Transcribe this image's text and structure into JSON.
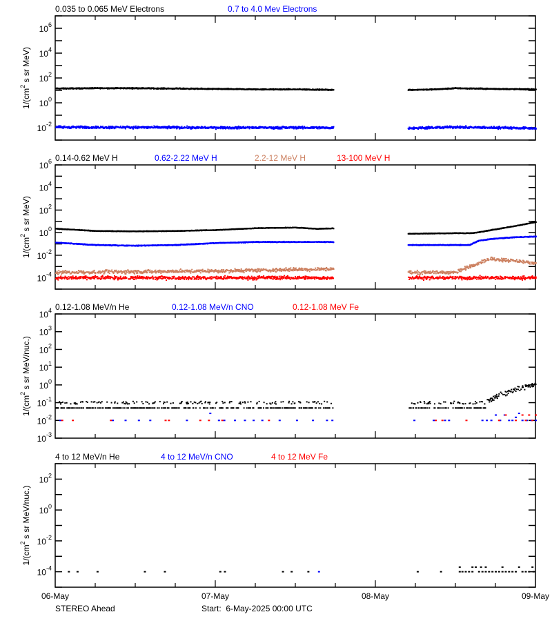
{
  "chart_data": [
    {
      "type": "scatter",
      "title_legend": [
        {
          "text": "0.035 to 0.065 MeV Electrons",
          "color": "#000000"
        },
        {
          "text": "0.7 to 4.0 Mev Electrons",
          "color": "#0000ff"
        }
      ],
      "ylabel_parts": [
        "1/(cm",
        "2",
        " s sr MeV)"
      ],
      "yscale": "log",
      "ylim": [
        0.001,
        10000000
      ],
      "ytick_labels": [
        "10^6",
        "10^4",
        "10^2",
        "10^0",
        "10^-2"
      ],
      "series": [
        {
          "color": "#000000",
          "segments": [
            [
              [
                "6 00:00",
                14
              ],
              [
                "6 06:00",
                15
              ],
              [
                "6 12:00",
                15
              ],
              [
                "6 18:00",
                14
              ],
              [
                "7 00:00",
                13
              ],
              [
                "7 06:00",
                12
              ],
              [
                "7 12:00",
                12
              ],
              [
                "7 17:40",
                11
              ]
            ],
            [
              [
                "8 04:50",
                11
              ],
              [
                "8 09:00",
                12
              ],
              [
                "8 12:00",
                15
              ],
              [
                "8 18:00",
                13
              ],
              [
                "9 00:00",
                12
              ]
            ]
          ]
        },
        {
          "color": "#0000ff",
          "segments": [
            [
              [
                "6 00:00",
                0.011
              ],
              [
                "7 00:00",
                0.01
              ],
              [
                "7 17:40",
                0.01
              ]
            ],
            [
              [
                "8 04:50",
                0.009
              ],
              [
                "8 12:00",
                0.011
              ],
              [
                "9 00:00",
                0.009
              ]
            ]
          ]
        }
      ]
    },
    {
      "type": "scatter",
      "title_legend": [
        {
          "text": "0.14-0.62 MeV H",
          "color": "#000000"
        },
        {
          "text": "0.62-2.22 MeV H",
          "color": "#0000ff"
        },
        {
          "text": "2.2-12 MeV H",
          "color": "#cc8060"
        },
        {
          "text": "13-100 MeV H",
          "color": "#ff0000"
        }
      ],
      "ylabel_parts": [
        "1/(cm",
        "2",
        " s sr MeV)"
      ],
      "yscale": "log",
      "ylim": [
        1e-05,
        1000000
      ],
      "ytick_labels": [
        "10^6",
        "10^4",
        "10^2",
        "10^0",
        "10^-2",
        "10^-4"
      ],
      "series": [
        {
          "color": "#000000",
          "segments": [
            [
              [
                "6 00:00",
                2.2
              ],
              [
                "6 03:00",
                1.8
              ],
              [
                "6 06:00",
                1.4
              ],
              [
                "6 12:00",
                1.3
              ],
              [
                "6 18:00",
                1.4
              ],
              [
                "7 00:00",
                1.7
              ],
              [
                "7 06:00",
                2.5
              ],
              [
                "7 12:00",
                2.8
              ],
              [
                "7 15:00",
                2.2
              ],
              [
                "7 17:40",
                2.4
              ]
            ],
            [
              [
                "8 04:50",
                0.8
              ],
              [
                "8 12:00",
                0.9
              ],
              [
                "8 14:30",
                0.9
              ],
              [
                "8 18:00",
                2
              ],
              [
                "8 21:00",
                4
              ],
              [
                "9 00:00",
                8.7
              ]
            ]
          ]
        },
        {
          "color": "#0000ff",
          "segments": [
            [
              [
                "6 00:00",
                0.13
              ],
              [
                "6 06:00",
                0.08
              ],
              [
                "6 12:00",
                0.07
              ],
              [
                "6 18:00",
                0.08
              ],
              [
                "7 00:00",
                0.12
              ],
              [
                "7 06:00",
                0.15
              ],
              [
                "7 12:00",
                0.15
              ],
              [
                "7 17:40",
                0.15
              ]
            ],
            [
              [
                "8 04:50",
                0.08
              ],
              [
                "8 14:00",
                0.08
              ],
              [
                "8 15:30",
                0.2
              ],
              [
                "8 18:00",
                0.3
              ],
              [
                "8 21:00",
                0.4
              ],
              [
                "9 00:00",
                0.45
              ]
            ]
          ]
        },
        {
          "color": "#cc8060",
          "segments": [
            [
              [
                "6 00:00",
                0.0003
              ],
              [
                "7 00:00",
                0.0004
              ],
              [
                "7 17:40",
                0.0006
              ]
            ],
            [
              [
                "8 04:50",
                0.0003
              ],
              [
                "8 12:00",
                0.0003
              ],
              [
                "8 14:00",
                0.001
              ],
              [
                "8 17:00",
                0.005
              ],
              [
                "8 20:00",
                0.0035
              ],
              [
                "9 00:00",
                0.002
              ]
            ]
          ]
        },
        {
          "color": "#ff0000",
          "segments": [
            [
              [
                "6 00:00",
                0.0001
              ],
              [
                "7 17:40",
                0.0001
              ]
            ],
            [
              [
                "8 04:50",
                0.0001
              ],
              [
                "9 00:00",
                0.0001
              ]
            ]
          ]
        }
      ]
    },
    {
      "type": "scatter",
      "title_legend": [
        {
          "text": "0.12-1.08 MeV/n He",
          "color": "#000000"
        },
        {
          "text": "0.12-1.08 MeV/n CNO",
          "color": "#0000ff"
        },
        {
          "text": "0.12-1.08 MeV Fe",
          "color": "#ff0000"
        }
      ],
      "ylabel_parts": [
        "1/(cm",
        "2",
        " s sr MeV/nuc.)"
      ],
      "yscale": "log",
      "ylim": [
        0.001,
        10000
      ],
      "ytick_labels": [
        "10^4",
        "10^3",
        "10^2",
        "10^1",
        "10^0",
        "10^-1",
        "10^-2",
        "10^-3"
      ],
      "series": [
        {
          "color": "#000000",
          "segments": [
            [
              [
                "6 00:00",
                0.06
              ],
              [
                "6 12:00",
                0.06
              ],
              [
                "7 00:00",
                0.07
              ],
              [
                "7 06:00",
                0.09
              ],
              [
                "7 17:40",
                0.08
              ]
            ],
            [
              [
                "8 05:00",
                0.06
              ],
              [
                "8 15:00",
                0.06
              ],
              [
                "8 17:00",
                0.15
              ],
              [
                "8 20:00",
                0.4
              ],
              [
                "8 22:00",
                0.8
              ],
              [
                "9 00:00",
                1.0
              ]
            ]
          ]
        },
        {
          "color": "#0000ff",
          "points": [
            [
              "6 00:42",
              0.01
            ],
            [
              "6 08:36",
              0.01
            ],
            [
              "6 10:30",
              0.01
            ],
            [
              "6 12:30",
              0.01
            ],
            [
              "6 14:12",
              0.01
            ],
            [
              "6 19:42",
              0.01
            ],
            [
              "6 23:12",
              0.025
            ],
            [
              "7 00:30",
              0.01
            ],
            [
              "7 01:18",
              0.01
            ],
            [
              "7 02:54",
              0.01
            ],
            [
              "7 04:24",
              0.01
            ],
            [
              "7 05:42",
              0.01
            ],
            [
              "7 07:00",
              0.01
            ],
            [
              "7 09:36",
              0.01
            ],
            [
              "7 12:12",
              0.01
            ],
            [
              "7 14:36",
              0.01
            ],
            [
              "7 16:42",
              0.01
            ],
            [
              "7 17:30",
              0.01
            ],
            [
              "8 05:48",
              0.01
            ],
            [
              "8 08:42",
              0.01
            ],
            [
              "8 10:24",
              0.01
            ],
            [
              "8 11:00",
              0.01
            ],
            [
              "8 16:00",
              0.01
            ],
            [
              "8 16:40",
              0.01
            ],
            [
              "8 17:20",
              0.01
            ],
            [
              "8 18:00",
              0.02
            ],
            [
              "8 18:40",
              0.01
            ],
            [
              "8 19:20",
              0.02
            ],
            [
              "8 20:00",
              0.01
            ],
            [
              "8 20:30",
              0.01
            ],
            [
              "8 21:00",
              0.015
            ],
            [
              "8 21:30",
              0.025
            ],
            [
              "8 22:00",
              0.01
            ],
            [
              "8 22:40",
              0.01
            ],
            [
              "8 23:20",
              0.01
            ],
            [
              "9 00:00",
              0.01
            ]
          ]
        },
        {
          "color": "#ff0000",
          "points": [
            [
              "6 01:00",
              0.01
            ],
            [
              "6 02:36",
              0.01
            ],
            [
              "6 08:18",
              0.01
            ],
            [
              "6 16:30",
              0.01
            ],
            [
              "6 17:00",
              0.01
            ],
            [
              "6 21:42",
              0.01
            ],
            [
              "6 23:00",
              0.01
            ],
            [
              "7 01:00",
              0.01
            ],
            [
              "7 08:00",
              0.01
            ],
            [
              "8 09:00",
              0.01
            ],
            [
              "8 10:00",
              0.01
            ],
            [
              "8 13:36",
              0.01
            ],
            [
              "8 18:30",
              0.01
            ],
            [
              "8 19:30",
              0.02
            ],
            [
              "8 21:00",
              0.01
            ],
            [
              "8 22:00",
              0.02
            ],
            [
              "8 22:30",
              0.01
            ],
            [
              "8 23:00",
              0.02
            ],
            [
              "8 23:30",
              0.01
            ],
            [
              "9 00:00",
              0.02
            ]
          ]
        }
      ]
    },
    {
      "type": "scatter",
      "title_legend": [
        {
          "text": "4 to 12 MeV/n He",
          "color": "#000000"
        },
        {
          "text": "4 to 12 MeV/n CNO",
          "color": "#0000ff"
        },
        {
          "text": "4 to 12 MeV Fe",
          "color": "#ff0000"
        }
      ],
      "ylabel_parts": [
        "1/(cm",
        "2",
        " s sr MeV/nuc.)"
      ],
      "yscale": "log",
      "ylim": [
        1e-05,
        1000
      ],
      "ytick_labels": [
        "10^2",
        "10^0",
        "10^-2",
        "10^-4"
      ],
      "series": [
        {
          "color": "#000000",
          "points": [
            [
              "6 02:00",
              0.0001
            ],
            [
              "6 03:18",
              0.0001
            ],
            [
              "6 06:18",
              0.0001
            ],
            [
              "6 13:24",
              0.0001
            ],
            [
              "6 16:24",
              0.0001
            ],
            [
              "7 00:42",
              0.0001
            ],
            [
              "7 01:24",
              0.0001
            ],
            [
              "7 10:06",
              0.0001
            ],
            [
              "7 11:24",
              0.0001
            ],
            [
              "7 13:54",
              0.0001
            ],
            [
              "8 06:18",
              0.0001
            ],
            [
              "8 09:48",
              0.0001
            ],
            [
              "8 12:36",
              0.0002
            ],
            [
              "8 12:36",
              0.0001
            ],
            [
              "8 13:00",
              0.0001
            ],
            [
              "8 13:30",
              0.0001
            ],
            [
              "8 14:00",
              0.0001
            ],
            [
              "8 14:30",
              0.0002
            ],
            [
              "8 14:30",
              0.0001
            ],
            [
              "8 15:00",
              0.0002
            ],
            [
              "8 15:30",
              0.0001
            ],
            [
              "8 15:48",
              0.0002
            ],
            [
              "8 16:00",
              0.0001
            ],
            [
              "8 16:30",
              0.0002
            ],
            [
              "8 16:30",
              0.0001
            ],
            [
              "8 17:00",
              0.0001
            ],
            [
              "8 17:30",
              0.0001
            ],
            [
              "8 18:00",
              0.0001
            ],
            [
              "8 18:30",
              0.0001
            ],
            [
              "8 19:00",
              0.0002
            ],
            [
              "8 19:00",
              0.0001
            ],
            [
              "8 19:30",
              0.0001
            ],
            [
              "8 20:00",
              0.0001
            ],
            [
              "8 20:30",
              0.0001
            ],
            [
              "8 21:00",
              0.0001
            ],
            [
              "8 21:30",
              0.0002
            ],
            [
              "8 22:00",
              0.0001
            ],
            [
              "8 22:30",
              0.0001
            ],
            [
              "8 23:00",
              0.0001
            ],
            [
              "8 23:30",
              0.0002
            ],
            [
              "8 23:40",
              0.0001
            ]
          ]
        },
        {
          "color": "#0000ff",
          "points": [
            [
              "7 15:30",
              0.0001
            ]
          ]
        },
        {
          "color": "#ff0000",
          "points": []
        }
      ]
    }
  ],
  "x_axis": {
    "range": [
      "06-May 00:00",
      "09-May 00:00"
    ],
    "tick_labels": [
      "06-May",
      "07-May",
      "08-May",
      "09-May"
    ],
    "minor_tick_interval": "6 hours"
  },
  "footer": {
    "spacecraft": "STEREO Ahead",
    "start": "Start:  6-May-2025 00:00 UTC"
  }
}
